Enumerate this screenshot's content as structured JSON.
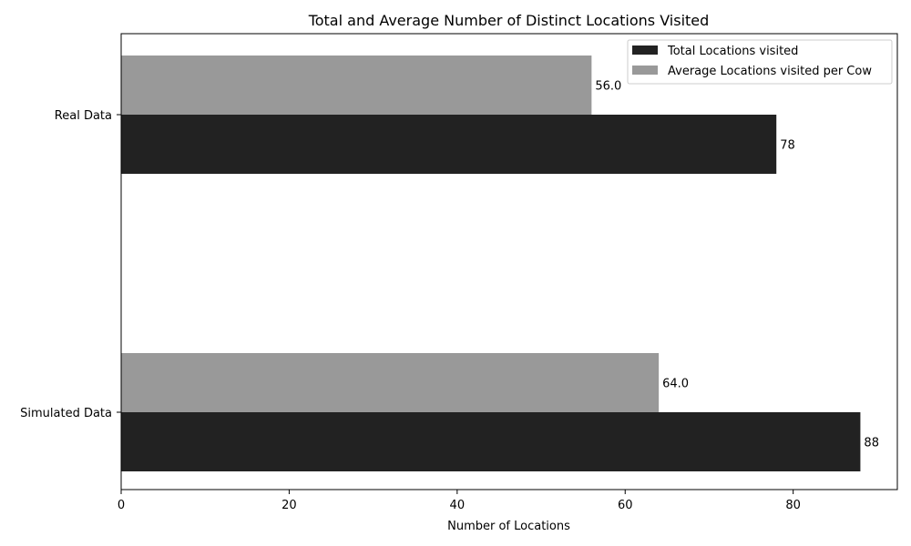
{
  "chart_data": {
    "type": "bar",
    "orientation": "horizontal",
    "title": "Total and Average Number of Distinct Locations Visited",
    "xlabel": "Number of Locations",
    "ylabel": "",
    "categories": [
      "Real Data",
      "Simulated Data"
    ],
    "series": [
      {
        "name": "Total Locations visited",
        "values": [
          78,
          88
        ],
        "labels": [
          "78",
          "88"
        ],
        "color": "#222222"
      },
      {
        "name": "Average Locations visited per Cow",
        "values": [
          56.0,
          64.0
        ],
        "labels": [
          "56.0",
          "64.0"
        ],
        "color": "#999999"
      }
    ],
    "xlim": [
      0,
      92.4
    ],
    "xticks": [
      0,
      20,
      40,
      60,
      80
    ],
    "xtick_labels": [
      "0",
      "20",
      "40",
      "60",
      "80"
    ],
    "grid": false,
    "legend_position": "top-right"
  }
}
